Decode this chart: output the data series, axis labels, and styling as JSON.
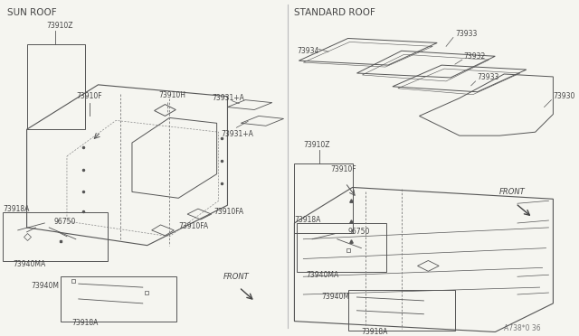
{
  "background_color": "#f5f5f0",
  "line_color": "#555555",
  "text_color": "#444444",
  "title_left": "SUN ROOF",
  "title_right": "STANDARD ROOF",
  "footnote": "A738*0 36",
  "font_size_title": 7.5,
  "font_size_label": 5.5,
  "font_size_footnote": 5.5
}
